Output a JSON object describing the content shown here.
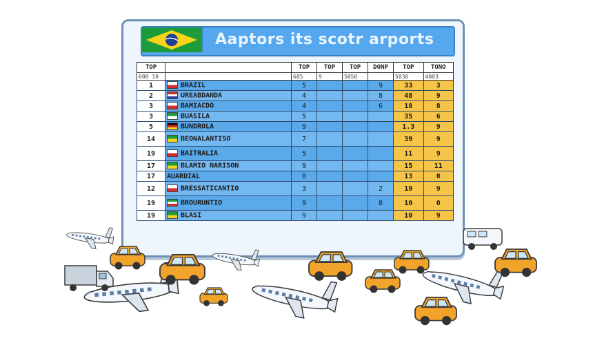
{
  "board": {
    "title": "Aaptors its scotr arports",
    "header_cols": [
      "TOP",
      "",
      "TOP",
      "TOP",
      "TOP",
      "DONP",
      "TOP",
      "",
      "TONO"
    ],
    "sub_cols": [
      "600 10",
      "",
      "685",
      "9",
      "5050",
      "",
      "5030",
      "",
      "4003"
    ],
    "rows": [
      {
        "rank": "1",
        "flag": "red",
        "name": "BRAZIL",
        "c1": "5",
        "c2": "",
        "c3": "",
        "c4": "9",
        "c5": "33",
        "c6": "3"
      },
      {
        "rank": "2",
        "flag": "thai",
        "name": "UREABDANDA",
        "c1": "4",
        "c2": "",
        "c3": "",
        "c4": "8",
        "c5": "48",
        "c6": "9"
      },
      {
        "rank": "3",
        "flag": "red",
        "name": "BAMIACDO",
        "c1": "4",
        "c2": "",
        "c3": "",
        "c4": "6",
        "c5": "18",
        "c6": "8"
      },
      {
        "rank": "3",
        "flag": "green",
        "name": "BUASILA",
        "c1": "5",
        "c2": "",
        "c3": "",
        "c4": "",
        "c5": "35",
        "c6": "6"
      },
      {
        "rank": "5",
        "flag": "german",
        "name": "BUNDROLA",
        "c1": "9",
        "c2": "",
        "c3": "",
        "c4": "",
        "c5": "1.3",
        "c6": "9"
      },
      {
        "rank": "14",
        "flag": "brazil",
        "name": "BEONALANTISO",
        "c1": "7",
        "c2": "",
        "c3": "",
        "c4": "",
        "c5": "39",
        "c6": "9"
      },
      {
        "rank": "19",
        "flag": "red",
        "name": "BAITRALIA",
        "c1": "5",
        "c2": "",
        "c3": "",
        "c4": "",
        "c5": "11",
        "c6": "9"
      },
      {
        "rank": "17",
        "flag": "brazil",
        "name": "BLAMIO NARISON",
        "c1": "9",
        "c2": "",
        "c3": "",
        "c4": "",
        "c5": "15",
        "c6": "11"
      },
      {
        "rank": "17",
        "flag": "none",
        "name": "AUARDIAL",
        "c1": "8",
        "c2": "",
        "c3": "",
        "c4": "",
        "c5": "13",
        "c6": "0"
      },
      {
        "rank": "12",
        "flag": "red",
        "name": "BRESSATICANTIO",
        "c1": "3",
        "c2": "",
        "c3": "",
        "c4": "2",
        "c5": "19",
        "c6": "9"
      },
      {
        "rank": "19",
        "flag": "italy",
        "name": "BROURUNTIO",
        "c1": "9",
        "c2": "",
        "c3": "",
        "c4": "8",
        "c5": "10",
        "c6": "0"
      },
      {
        "rank": "19",
        "flag": "brazil",
        "name": "BLASI",
        "c1": "9",
        "c2": "",
        "c3": "",
        "c4": "",
        "c5": "10",
        "c6": "9"
      }
    ]
  },
  "colors": {
    "header_blue": "#55a8ee",
    "row_blue": "#5aa9ea",
    "gold": "#f6c548",
    "car_orange": "#f2a42a",
    "plane_white": "#f4f7fb"
  },
  "icons": [
    "brazil-flag-icon",
    "airplane-icon",
    "car-icon",
    "truck-icon",
    "van-icon"
  ]
}
